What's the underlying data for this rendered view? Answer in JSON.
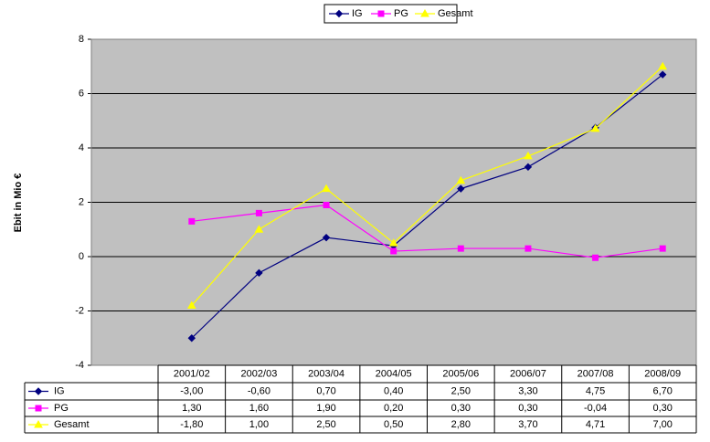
{
  "chart_data": {
    "type": "line",
    "y_label": "Ebit in Mio €",
    "categories": [
      "2001/02",
      "2002/03",
      "2003/04",
      "2004/05",
      "2005/06",
      "2006/07",
      "2007/08",
      "2008/09"
    ],
    "series": [
      {
        "name": "IG",
        "color": "#000080",
        "marker": "diamond",
        "values": [
          -3.0,
          -0.6,
          0.7,
          0.4,
          2.5,
          3.3,
          4.75,
          6.7
        ],
        "value_labels": [
          "-3,00",
          "-0,60",
          "0,70",
          "0,40",
          "2,50",
          "3,30",
          "4,75",
          "6,70"
        ]
      },
      {
        "name": "PG",
        "color": "#ff00ff",
        "marker": "square",
        "values": [
          1.3,
          1.6,
          1.9,
          0.2,
          0.3,
          0.3,
          -0.04,
          0.3
        ],
        "value_labels": [
          "1,30",
          "1,60",
          "1,90",
          "0,20",
          "0,30",
          "0,30",
          "-0,04",
          "0,30"
        ]
      },
      {
        "name": "Gesamt",
        "color": "#ffff00",
        "marker": "triangle",
        "values": [
          -1.8,
          1.0,
          2.5,
          0.5,
          2.8,
          3.7,
          4.71,
          7.0
        ],
        "value_labels": [
          "-1,80",
          "1,00",
          "2,50",
          "0,50",
          "2,80",
          "3,70",
          "4,71",
          "7,00"
        ]
      }
    ],
    "ylim": [
      -4,
      8
    ],
    "yticks": [
      -4,
      -2,
      0,
      2,
      4,
      6,
      8
    ],
    "grid": true,
    "legend": "top",
    "data_table": true
  }
}
